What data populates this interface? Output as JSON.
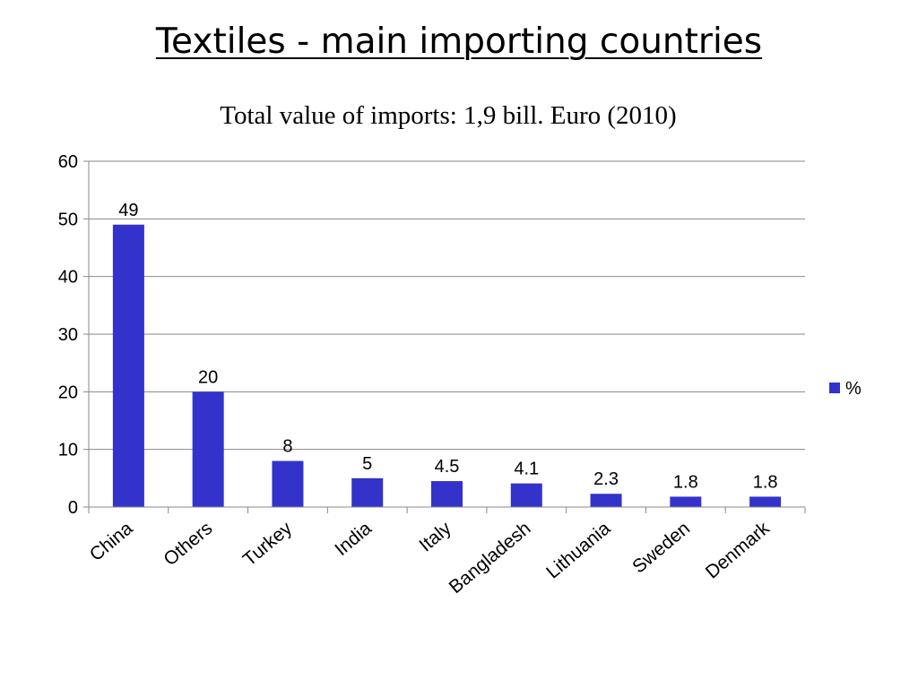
{
  "slide": {
    "title": "Textiles - main importing countries",
    "subtitle": "Total value of imports: 1,9 bill. Euro (2010)"
  },
  "chart_data": {
    "type": "bar",
    "categories": [
      "China",
      "Others",
      "Turkey",
      "India",
      "Italy",
      "Bangladesh",
      "Lithuania",
      "Sweden",
      "Denmark"
    ],
    "series": [
      {
        "name": "%",
        "values": [
          49,
          20,
          8,
          5,
          4.5,
          4.1,
          2.3,
          1.8,
          1.8
        ],
        "color": "#3333cc"
      }
    ],
    "data_labels": [
      "49",
      "20",
      "8",
      "5",
      "4.5",
      "4.1",
      "2.3",
      "1.8",
      "1.8"
    ],
    "y_ticks": [
      0,
      10,
      20,
      30,
      40,
      50,
      60
    ],
    "ylim": [
      0,
      60
    ],
    "grid": true,
    "gridline_color": "#888888",
    "legend_position": "right",
    "x_tick_rotation": "diagonal"
  }
}
